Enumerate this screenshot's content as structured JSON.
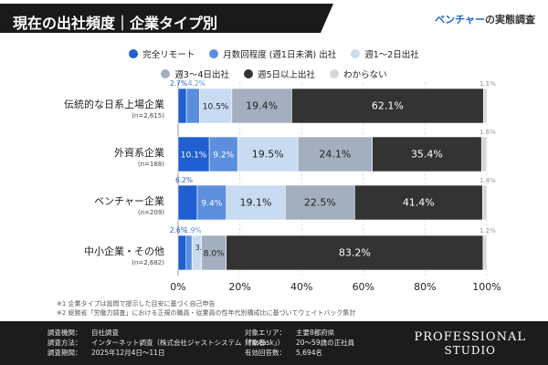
{
  "header": {
    "title": "現在の出社頻度｜企業タイプ別",
    "subtitle_highlight": "ベンチャー",
    "subtitle_rest": "の実態調査"
  },
  "colors": [
    "#1f5fd0",
    "#5b8fde",
    "#c9dbf3",
    "#a3afbf",
    "#333333",
    "#d6d6d6"
  ],
  "chart_data": {
    "type": "bar",
    "orientation": "horizontal",
    "stacked": true,
    "categories": [
      "伝統的な日系上場企業",
      "外資系企業",
      "ベンチャー企業",
      "中小企業・その他"
    ],
    "category_notes": [
      "(n=2,615)",
      "(n=188)",
      "(n=209)",
      "(n=2,682)"
    ],
    "series": [
      {
        "name": "完全リモート",
        "values": [
          2.7,
          10.1,
          6.2,
          2.6
        ]
      },
      {
        "name": "月数回程度 (週1日未満) 出社",
        "values": [
          4.2,
          9.2,
          9.4,
          1.9
        ]
      },
      {
        "name": "週1〜2日出社",
        "values": [
          10.5,
          19.5,
          19.1,
          3.1
        ]
      },
      {
        "name": "週3〜4日出社",
        "values": [
          19.4,
          24.1,
          22.5,
          8.0
        ]
      },
      {
        "name": "週5日以上出社",
        "values": [
          62.1,
          35.4,
          41.4,
          83.2
        ]
      },
      {
        "name": "わからない",
        "values": [
          1.1,
          1.6,
          1.4,
          1.2
        ]
      }
    ],
    "xlim": [
      0,
      100
    ],
    "x_ticks": [
      "0%",
      "20%",
      "40%",
      "60%",
      "80%",
      "100%"
    ],
    "legend_position": "top",
    "grid": true
  },
  "footnotes": [
    "※1 企業タイプは設問で提示した目安に基づく自己申告",
    "※2 総務省「労働力調査」における正規の職員・従業員の性年代別構成比に基づいてウェイトバック集計"
  ],
  "footer": {
    "left": [
      {
        "key": "調査機関：",
        "value": "自社調査"
      },
      {
        "key": "調査方法：",
        "value": "インターネット調査（株式会社ジャストシステム「Fastask」）"
      },
      {
        "key": "調査期間：",
        "value": "2025年12月4日〜11日"
      }
    ],
    "right": [
      {
        "key": "対象エリア：",
        "value": "主要8都府県"
      },
      {
        "key": "対象者：",
        "value": "20〜59歳の正社員"
      },
      {
        "key": "有効回答数：",
        "value": "5,694名"
      }
    ],
    "brand_line1": "PROFESSIONAL",
    "brand_line2": "STUDIO"
  }
}
